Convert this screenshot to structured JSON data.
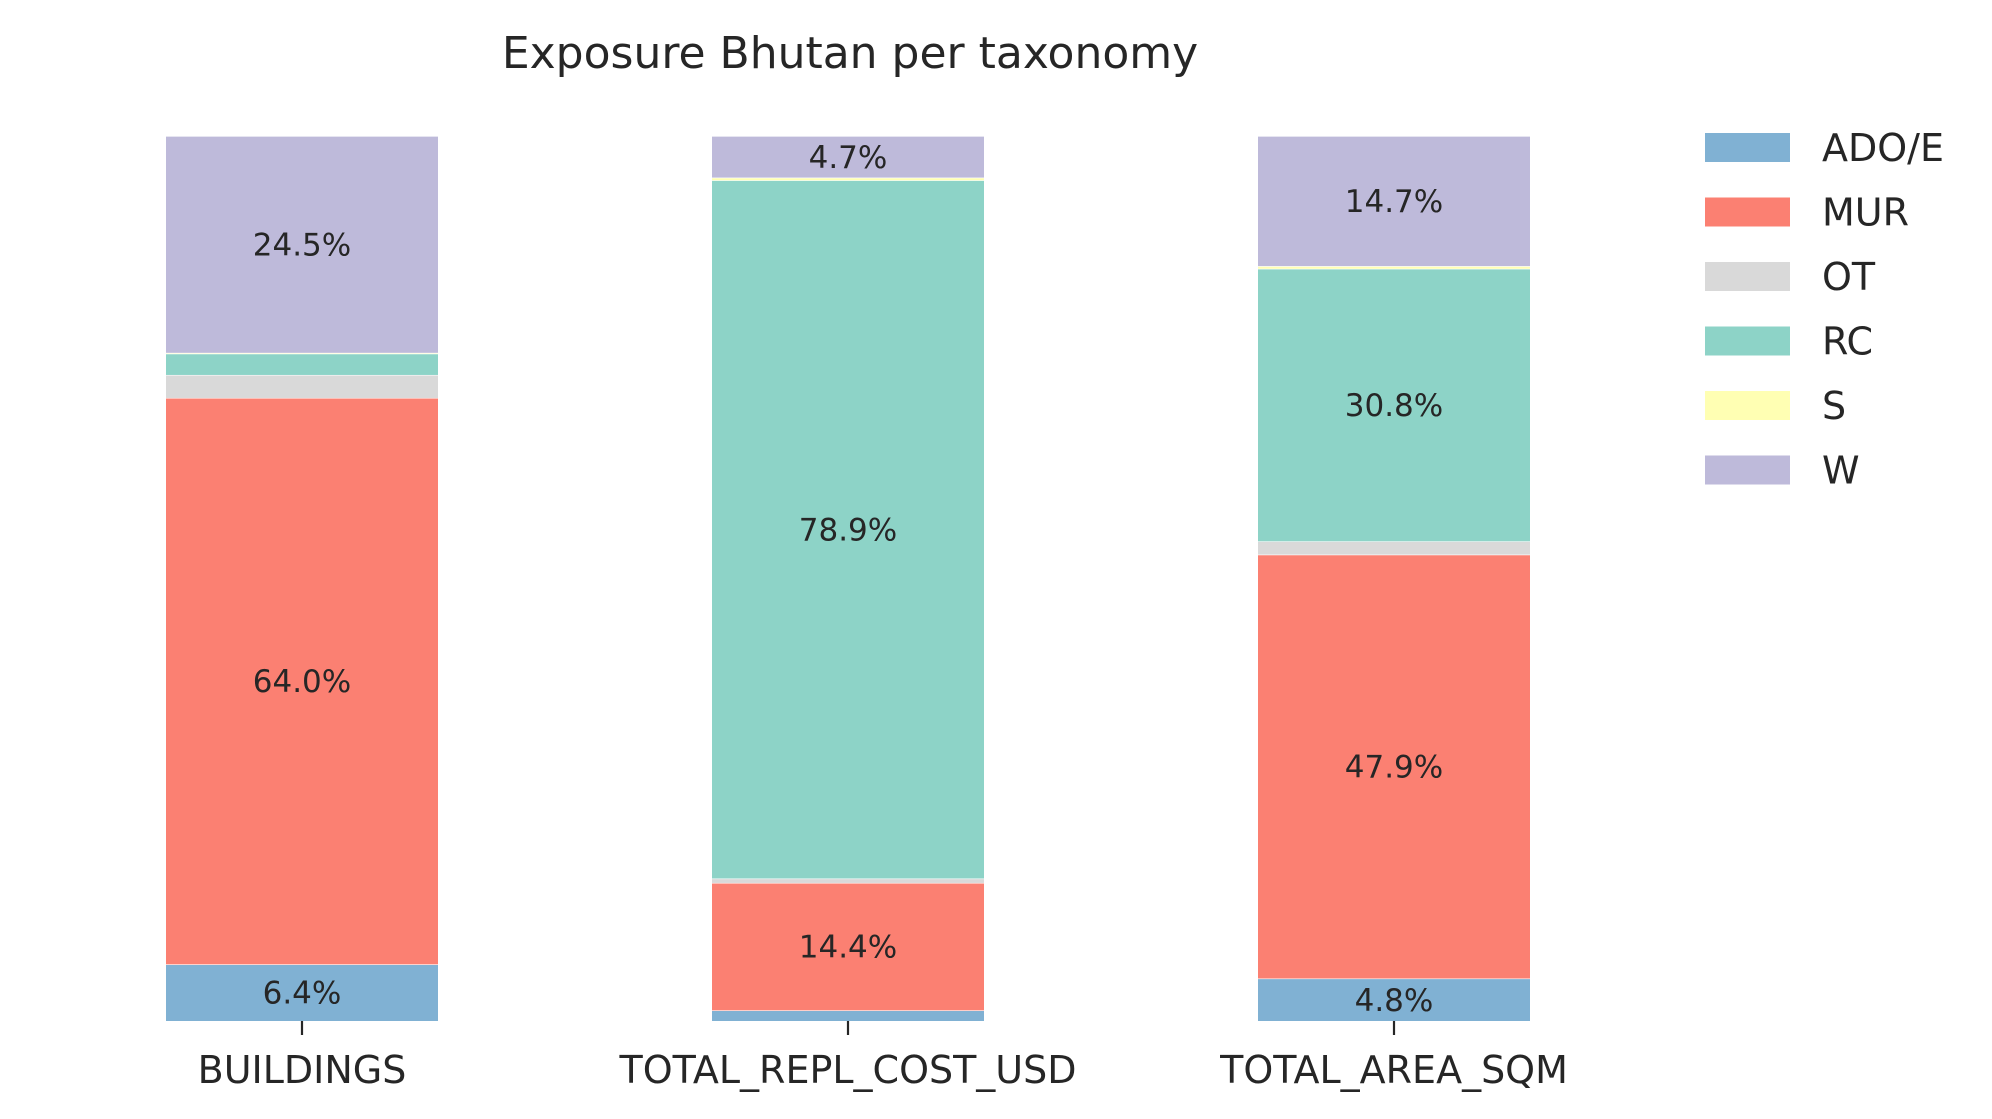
{
  "chart_data": {
    "type": "bar",
    "stacked": true,
    "title": "Exposure Bhutan per taxonomy",
    "xlabel": "",
    "ylabel": "",
    "ylim": [
      0,
      100
    ],
    "grid": false,
    "legend_position": "right",
    "categories": [
      "BUILDINGS",
      "TOTAL_REPL_COST_USD",
      "TOTAL_AREA_SQM"
    ],
    "series": [
      {
        "name": "ADO/E",
        "color": "#80b1d3",
        "values": [
          6.4,
          1.2,
          4.8
        ],
        "labels": [
          "6.4%",
          "",
          "4.8%"
        ]
      },
      {
        "name": "MUR",
        "color": "#fb8072",
        "values": [
          64.0,
          14.4,
          47.9
        ],
        "labels": [
          "64.0%",
          "14.4%",
          "47.9%"
        ]
      },
      {
        "name": "OT",
        "color": "#d9d9d9",
        "values": [
          2.6,
          0.5,
          1.5
        ],
        "labels": [
          "",
          "",
          ""
        ]
      },
      {
        "name": "RC",
        "color": "#8dd3c7",
        "values": [
          2.4,
          78.9,
          30.8
        ],
        "labels": [
          "",
          "78.9%",
          "30.8%"
        ]
      },
      {
        "name": "S",
        "color": "#ffffb3",
        "values": [
          0.1,
          0.3,
          0.3
        ],
        "labels": [
          "",
          "",
          ""
        ]
      },
      {
        "name": "W",
        "color": "#bebada",
        "values": [
          24.5,
          4.7,
          14.7
        ],
        "labels": [
          "24.5%",
          "4.7%",
          "14.7%"
        ]
      }
    ]
  }
}
